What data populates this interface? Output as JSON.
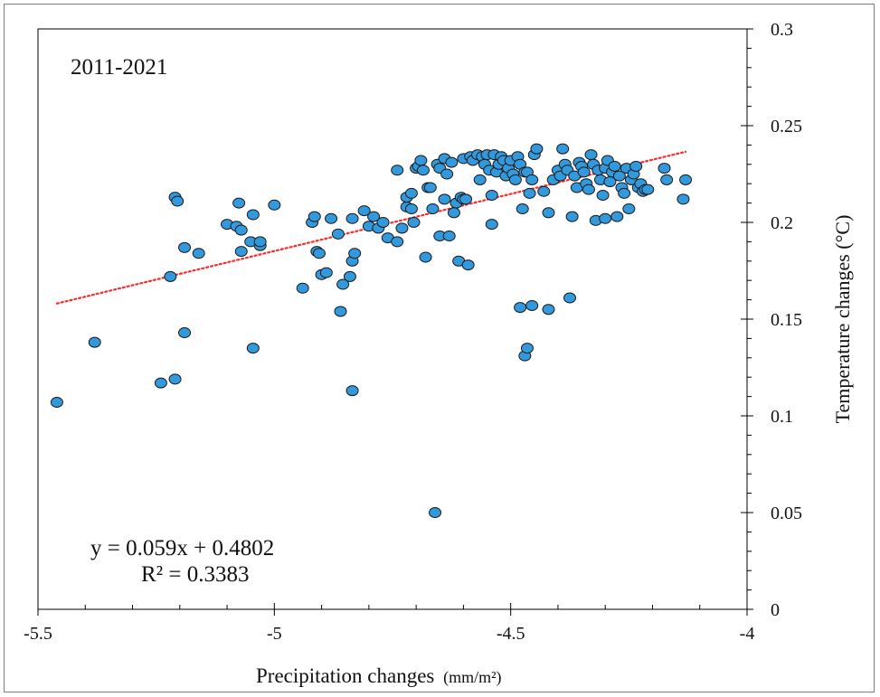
{
  "chart_data": {
    "type": "scatter",
    "title": "2011-2021",
    "xlabel": "Precipitation  changes",
    "xlabel_unit": "(mm/m²)",
    "ylabel": "Temperature changes (°C)",
    "xlim": [
      -5.5,
      -4
    ],
    "ylim": [
      0,
      0.3
    ],
    "x_ticks": [
      -5.5,
      -5,
      -4.5,
      -4
    ],
    "x_tick_labels": [
      "-5.5",
      "-5",
      "-4.5",
      "-4"
    ],
    "y_ticks": [
      0,
      0.05,
      0.1,
      0.15,
      0.2,
      0.25,
      0.3
    ],
    "y_tick_labels": [
      "0",
      "0.05",
      "0.1",
      "0.15",
      "0.2",
      "0.25",
      "0.3"
    ],
    "y_axis_position": "right",
    "grid": false,
    "marker_color": "#3399dd",
    "marker_edge": "#1a1a1a",
    "trendline": {
      "slope": 0.059,
      "intercept": 0.4802,
      "x_range": [
        -5.46,
        -4.13
      ],
      "color": "#ff2a2a",
      "style": "dotted",
      "equation": "y = 0.059x + 0.4802",
      "r_squared": "R² = 0.3383"
    },
    "points": [
      [
        -5.46,
        0.107
      ],
      [
        -5.38,
        0.138
      ],
      [
        -5.24,
        0.117
      ],
      [
        -5.21,
        0.119
      ],
      [
        -5.19,
        0.143
      ],
      [
        -5.22,
        0.172
      ],
      [
        -5.21,
        0.213
      ],
      [
        -5.205,
        0.211
      ],
      [
        -5.19,
        0.187
      ],
      [
        -5.16,
        0.184
      ],
      [
        -5.1,
        0.199
      ],
      [
        -5.08,
        0.198
      ],
      [
        -5.075,
        0.21
      ],
      [
        -5.07,
        0.196
      ],
      [
        -5.07,
        0.185
      ],
      [
        -5.05,
        0.19
      ],
      [
        -5.045,
        0.204
      ],
      [
        -5.03,
        0.188
      ],
      [
        -5.03,
        0.19
      ],
      [
        -5.0,
        0.209
      ],
      [
        -5.045,
        0.135
      ],
      [
        -4.94,
        0.166
      ],
      [
        -4.92,
        0.2
      ],
      [
        -4.915,
        0.203
      ],
      [
        -4.91,
        0.185
      ],
      [
        -4.905,
        0.184
      ],
      [
        -4.9,
        0.173
      ],
      [
        -4.89,
        0.174
      ],
      [
        -4.88,
        0.202
      ],
      [
        -4.865,
        0.194
      ],
      [
        -4.86,
        0.154
      ],
      [
        -4.855,
        0.168
      ],
      [
        -4.84,
        0.172
      ],
      [
        -4.835,
        0.18
      ],
      [
        -4.83,
        0.184
      ],
      [
        -4.835,
        0.202
      ],
      [
        -4.835,
        0.113
      ],
      [
        -4.81,
        0.206
      ],
      [
        -4.8,
        0.198
      ],
      [
        -4.79,
        0.203
      ],
      [
        -4.78,
        0.197
      ],
      [
        -4.77,
        0.2
      ],
      [
        -4.76,
        0.192
      ],
      [
        -4.74,
        0.19
      ],
      [
        -4.74,
        0.227
      ],
      [
        -4.73,
        0.197
      ],
      [
        -4.72,
        0.208
      ],
      [
        -4.72,
        0.213
      ],
      [
        -4.71,
        0.207
      ],
      [
        -4.71,
        0.215
      ],
      [
        -4.705,
        0.2
      ],
      [
        -4.7,
        0.228
      ],
      [
        -4.695,
        0.229
      ],
      [
        -4.69,
        0.232
      ],
      [
        -4.685,
        0.227
      ],
      [
        -4.68,
        0.182
      ],
      [
        -4.675,
        0.218
      ],
      [
        -4.67,
        0.218
      ],
      [
        -4.665,
        0.207
      ],
      [
        -4.66,
        0.05
      ],
      [
        -4.655,
        0.23
      ],
      [
        -4.65,
        0.228
      ],
      [
        -4.65,
        0.193
      ],
      [
        -4.64,
        0.212
      ],
      [
        -4.64,
        0.233
      ],
      [
        -4.635,
        0.225
      ],
      [
        -4.63,
        0.193
      ],
      [
        -4.625,
        0.231
      ],
      [
        -4.62,
        0.205
      ],
      [
        -4.615,
        0.21
      ],
      [
        -4.61,
        0.18
      ],
      [
        -4.605,
        0.213
      ],
      [
        -4.6,
        0.233
      ],
      [
        -4.6,
        0.212
      ],
      [
        -4.595,
        0.212
      ],
      [
        -4.59,
        0.178
      ],
      [
        -4.585,
        0.234
      ],
      [
        -4.58,
        0.232
      ],
      [
        -4.57,
        0.235
      ],
      [
        -4.565,
        0.222
      ],
      [
        -4.56,
        0.234
      ],
      [
        -4.555,
        0.23
      ],
      [
        -4.55,
        0.235
      ],
      [
        -4.545,
        0.227
      ],
      [
        -4.54,
        0.199
      ],
      [
        -4.54,
        0.214
      ],
      [
        -4.535,
        0.235
      ],
      [
        -4.53,
        0.226
      ],
      [
        -4.525,
        0.23
      ],
      [
        -4.52,
        0.234
      ],
      [
        -4.515,
        0.232
      ],
      [
        -4.51,
        0.224
      ],
      [
        -4.505,
        0.228
      ],
      [
        -4.5,
        0.232
      ],
      [
        -4.495,
        0.225
      ],
      [
        -4.49,
        0.222
      ],
      [
        -4.485,
        0.234
      ],
      [
        -4.48,
        0.23
      ],
      [
        -4.475,
        0.207
      ],
      [
        -4.47,
        0.226
      ],
      [
        -4.465,
        0.226
      ],
      [
        -4.46,
        0.215
      ],
      [
        -4.455,
        0.222
      ],
      [
        -4.45,
        0.235
      ],
      [
        -4.445,
        0.238
      ],
      [
        -4.48,
        0.156
      ],
      [
        -4.47,
        0.131
      ],
      [
        -4.465,
        0.135
      ],
      [
        -4.455,
        0.157
      ],
      [
        -4.43,
        0.216
      ],
      [
        -4.42,
        0.155
      ],
      [
        -4.42,
        0.205
      ],
      [
        -4.41,
        0.222
      ],
      [
        -4.4,
        0.227
      ],
      [
        -4.395,
        0.224
      ],
      [
        -4.39,
        0.238
      ],
      [
        -4.385,
        0.23
      ],
      [
        -4.38,
        0.227
      ],
      [
        -4.375,
        0.161
      ],
      [
        -4.37,
        0.203
      ],
      [
        -4.365,
        0.224
      ],
      [
        -4.36,
        0.218
      ],
      [
        -4.355,
        0.231
      ],
      [
        -4.35,
        0.229
      ],
      [
        -4.345,
        0.226
      ],
      [
        -4.34,
        0.22
      ],
      [
        -4.335,
        0.217
      ],
      [
        -4.33,
        0.235
      ],
      [
        -4.325,
        0.23
      ],
      [
        -4.32,
        0.201
      ],
      [
        -4.315,
        0.227
      ],
      [
        -4.31,
        0.222
      ],
      [
        -4.305,
        0.214
      ],
      [
        -4.3,
        0.228
      ],
      [
        -4.3,
        0.202
      ],
      [
        -4.295,
        0.232
      ],
      [
        -4.29,
        0.221
      ],
      [
        -4.285,
        0.226
      ],
      [
        -4.28,
        0.229
      ],
      [
        -4.275,
        0.203
      ],
      [
        -4.27,
        0.224
      ],
      [
        -4.265,
        0.218
      ],
      [
        -4.26,
        0.215
      ],
      [
        -4.255,
        0.228
      ],
      [
        -4.25,
        0.207
      ],
      [
        -4.245,
        0.222
      ],
      [
        -4.24,
        0.225
      ],
      [
        -4.235,
        0.229
      ],
      [
        -4.23,
        0.218
      ],
      [
        -4.225,
        0.22
      ],
      [
        -4.22,
        0.216
      ],
      [
        -4.215,
        0.217
      ],
      [
        -4.21,
        0.217
      ],
      [
        -4.175,
        0.228
      ],
      [
        -4.17,
        0.222
      ],
      [
        -4.135,
        0.212
      ],
      [
        -4.13,
        0.222
      ]
    ]
  }
}
